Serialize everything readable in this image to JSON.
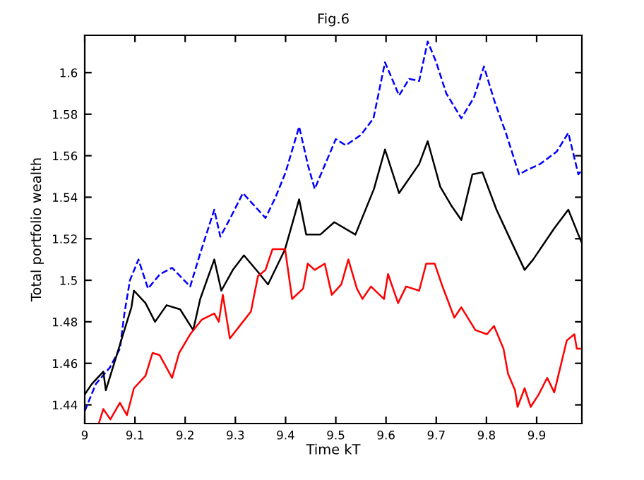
{
  "chart_data": {
    "type": "line",
    "title": "Fig.6",
    "xlabel": "Time kT",
    "ylabel": "Total portfolio wealth",
    "xlim": [
      9,
      9.99
    ],
    "ylim": [
      1.431,
      1.618
    ],
    "xticks": [
      9,
      9.1,
      9.2,
      9.3,
      9.4,
      9.5,
      9.6,
      9.7,
      9.8,
      9.9
    ],
    "yticks": [
      1.44,
      1.46,
      1.48,
      1.5,
      1.52,
      1.54,
      1.56,
      1.58,
      1.6
    ],
    "grid": false,
    "legend": false,
    "series": [
      {
        "color": "#0000ff",
        "line_style": "dashed",
        "x": [
          9.0,
          9.022,
          9.05,
          9.07,
          9.079,
          9.09,
          9.107,
          9.126,
          9.15,
          9.174,
          9.21,
          9.23,
          9.258,
          9.27,
          9.29,
          9.315,
          9.36,
          9.38,
          9.4,
          9.427,
          9.445,
          9.458,
          9.5,
          9.52,
          9.55,
          9.575,
          9.598,
          9.626,
          9.646,
          9.666,
          9.683,
          9.7,
          9.72,
          9.75,
          9.775,
          9.795,
          9.815,
          9.84,
          9.865,
          9.88,
          9.907,
          9.94,
          9.963,
          9.983,
          9.99
        ],
        "values": [
          1.437,
          1.45,
          1.458,
          1.467,
          1.484,
          1.5,
          1.51,
          1.496,
          1.503,
          1.506,
          1.497,
          1.513,
          1.534,
          1.521,
          1.53,
          1.542,
          1.53,
          1.54,
          1.552,
          1.574,
          1.555,
          1.544,
          1.568,
          1.565,
          1.57,
          1.578,
          1.605,
          1.589,
          1.597,
          1.596,
          1.615,
          1.605,
          1.59,
          1.578,
          1.588,
          1.603,
          1.587,
          1.57,
          1.551,
          1.553,
          1.556,
          1.562,
          1.571,
          1.551,
          1.553
        ]
      },
      {
        "color": "#000000",
        "line_style": "solid",
        "x": [
          9.0,
          9.014,
          9.037,
          9.042,
          9.065,
          9.093,
          9.098,
          9.121,
          9.14,
          9.163,
          9.19,
          9.216,
          9.23,
          9.258,
          9.272,
          9.295,
          9.317,
          9.345,
          9.365,
          9.399,
          9.413,
          9.427,
          9.441,
          9.469,
          9.497,
          9.539,
          9.576,
          9.598,
          9.626,
          9.666,
          9.683,
          9.708,
          9.73,
          9.75,
          9.772,
          9.792,
          9.82,
          9.843,
          9.876,
          9.893,
          9.935,
          9.963,
          9.983,
          9.99
        ],
        "values": [
          1.445,
          1.45,
          1.456,
          1.447,
          1.465,
          1.487,
          1.495,
          1.489,
          1.48,
          1.488,
          1.486,
          1.476,
          1.491,
          1.51,
          1.495,
          1.505,
          1.512,
          1.504,
          1.498,
          1.515,
          1.527,
          1.539,
          1.522,
          1.522,
          1.528,
          1.522,
          1.544,
          1.563,
          1.542,
          1.556,
          1.567,
          1.545,
          1.536,
          1.529,
          1.551,
          1.552,
          1.534,
          1.522,
          1.505,
          1.51,
          1.525,
          1.534,
          1.522,
          1.518
        ]
      },
      {
        "color": "#ff0000",
        "line_style": "solid",
        "x": [
          9.028,
          9.037,
          9.051,
          9.07,
          9.084,
          9.098,
          9.121,
          9.135,
          9.149,
          9.174,
          9.188,
          9.21,
          9.233,
          9.258,
          9.267,
          9.275,
          9.289,
          9.315,
          9.331,
          9.345,
          9.36,
          9.374,
          9.399,
          9.413,
          9.435,
          9.444,
          9.458,
          9.478,
          9.492,
          9.511,
          9.525,
          9.542,
          9.553,
          9.57,
          9.596,
          9.604,
          9.624,
          9.64,
          9.666,
          9.68,
          9.697,
          9.711,
          9.736,
          9.75,
          9.778,
          9.801,
          9.815,
          9.834,
          9.843,
          9.857,
          9.862,
          9.876,
          9.888,
          9.904,
          9.921,
          9.935,
          9.947,
          9.96,
          9.975,
          9.98,
          9.99
        ],
        "values": [
          1.431,
          1.438,
          1.433,
          1.441,
          1.435,
          1.448,
          1.454,
          1.465,
          1.464,
          1.453,
          1.465,
          1.474,
          1.481,
          1.484,
          1.48,
          1.493,
          1.472,
          1.48,
          1.485,
          1.502,
          1.505,
          1.515,
          1.515,
          1.491,
          1.496,
          1.508,
          1.505,
          1.508,
          1.493,
          1.498,
          1.51,
          1.496,
          1.491,
          1.497,
          1.491,
          1.503,
          1.489,
          1.497,
          1.495,
          1.508,
          1.508,
          1.498,
          1.482,
          1.487,
          1.476,
          1.474,
          1.478,
          1.467,
          1.455,
          1.447,
          1.439,
          1.448,
          1.439,
          1.445,
          1.453,
          1.446,
          1.458,
          1.471,
          1.474,
          1.467,
          1.467
        ]
      }
    ]
  }
}
